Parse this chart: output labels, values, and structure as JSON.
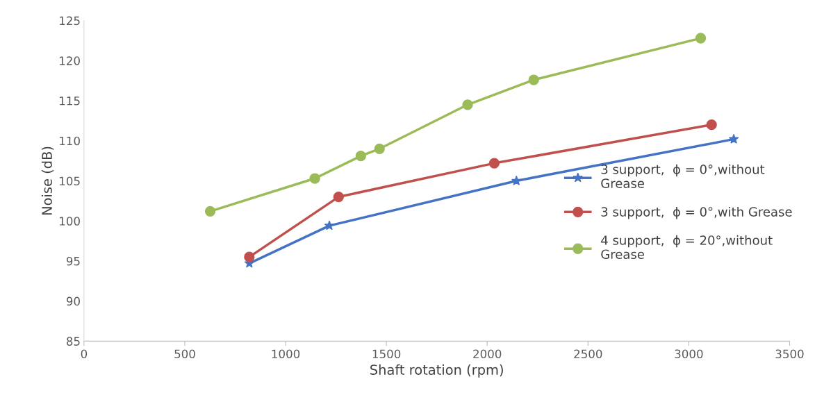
{
  "chart_data": {
    "type": "line",
    "xlabel": "Shaft rotation (rpm)",
    "ylabel": "Noise (dB)",
    "xlim": [
      0,
      3500
    ],
    "xticks": [
      0,
      500,
      1000,
      1500,
      2000,
      2500,
      3000,
      3500
    ],
    "ylim": [
      85,
      125
    ],
    "yticks": [
      85,
      90,
      95,
      100,
      105,
      110,
      115,
      120,
      125
    ],
    "grid": false,
    "legend": "right",
    "line_style": "solid",
    "series": [
      {
        "name": "3 support,  ϕ = 0°,without\nGrease",
        "color": "#4472c4",
        "marker": "star",
        "x": [
          820,
          1217,
          2145,
          3223
        ],
        "values": [
          94.7,
          99.4,
          105.0,
          110.2
        ]
      },
      {
        "name": "3 support,  ϕ = 0°,with Grease",
        "color": "#c0504d",
        "marker": "circle",
        "x": [
          820,
          1263,
          2035,
          3113
        ],
        "values": [
          95.5,
          103.0,
          107.2,
          112.0
        ]
      },
      {
        "name": "4 support,  ϕ = 20°,without\nGrease",
        "color": "#9bbb59",
        "marker": "circle",
        "x": [
          626,
          1145,
          1373,
          1466,
          1903,
          2231,
          3059
        ],
        "values": [
          101.2,
          105.3,
          108.1,
          109.0,
          114.5,
          117.6,
          122.8
        ]
      }
    ]
  }
}
